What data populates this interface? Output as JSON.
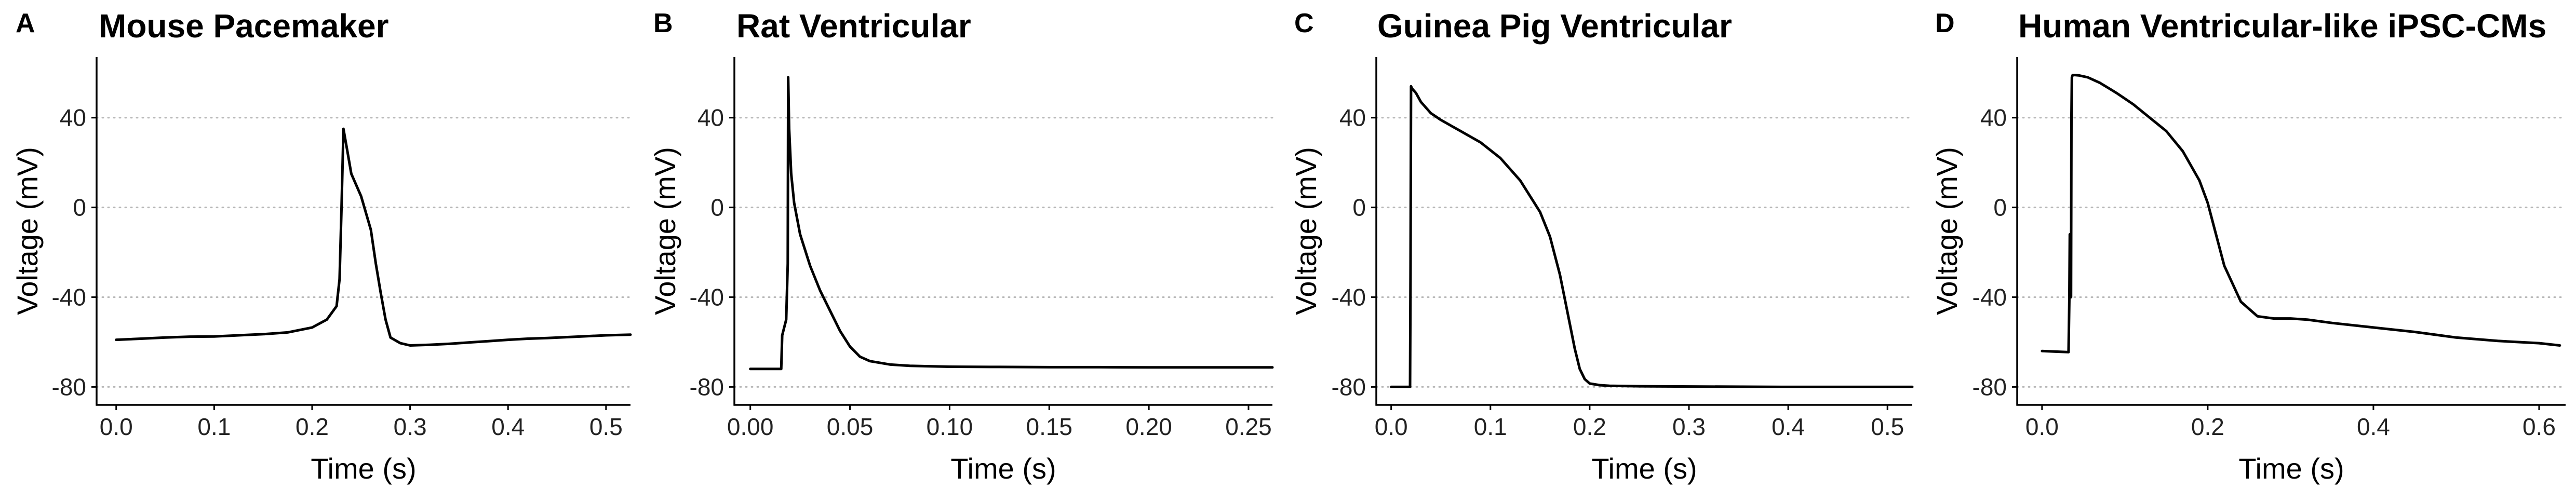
{
  "chart_data": [
    {
      "type": "line",
      "panel": "A",
      "title": "Mouse Pacemaker",
      "xlabel": "Time (s)",
      "ylabel": "Voltage (mV)",
      "xlim": [
        -0.02,
        0.525
      ],
      "ylim": [
        -88,
        67
      ],
      "xticks": [
        "0.0",
        "0.1",
        "0.2",
        "0.3",
        "0.4",
        "0.5"
      ],
      "yticks": [
        "-80",
        "-40",
        "0",
        "40"
      ],
      "grid": "horizontal dotted",
      "series": [
        {
          "x": [
            0.0,
            0.025,
            0.05,
            0.075,
            0.1,
            0.125,
            0.15,
            0.175,
            0.2,
            0.215,
            0.225,
            0.228,
            0.23,
            0.232,
            0.236,
            0.24,
            0.25,
            0.26,
            0.265,
            0.27,
            0.275,
            0.28,
            0.29,
            0.3,
            0.32,
            0.34,
            0.36,
            0.38,
            0.4,
            0.42,
            0.44,
            0.46,
            0.48,
            0.5,
            0.525
          ],
          "y": [
            -59,
            -58.5,
            -58,
            -57.6,
            -57.5,
            -57,
            -56.5,
            -55.7,
            -53.5,
            -50,
            -44,
            -32,
            0,
            35,
            25,
            15,
            5,
            -10,
            -25,
            -38,
            -50,
            -58,
            -60.5,
            -61.5,
            -61.2,
            -60.8,
            -60.2,
            -59.6,
            -59,
            -58.5,
            -58.2,
            -57.8,
            -57.4,
            -57,
            -56.7
          ]
        }
      ]
    },
    {
      "type": "line",
      "panel": "B",
      "title": "Rat Ventricular",
      "xlabel": "Time (s)",
      "ylabel": "Voltage (mV)",
      "xlim": [
        -0.008,
        0.262
      ],
      "ylim": [
        -88,
        67
      ],
      "xticks": [
        "0.00",
        "0.05",
        "0.10",
        "0.15",
        "0.20",
        "0.25"
      ],
      "yticks": [
        "-80",
        "-40",
        "0",
        "40"
      ],
      "grid": "horizontal dotted",
      "series": [
        {
          "x": [
            0.0,
            0.0155,
            0.016,
            0.018,
            0.0188,
            0.019,
            0.0195,
            0.0205,
            0.022,
            0.025,
            0.03,
            0.035,
            0.04,
            0.045,
            0.05,
            0.055,
            0.06,
            0.07,
            0.08,
            0.1,
            0.125,
            0.15,
            0.175,
            0.2,
            0.225,
            0.25,
            0.262
          ],
          "y": [
            -72,
            -72,
            -57,
            -50,
            -25,
            58,
            35,
            15,
            2,
            -12,
            -26,
            -37,
            -46,
            -55,
            -62,
            -66.5,
            -68.5,
            -70,
            -70.6,
            -71,
            -71.1,
            -71.2,
            -71.2,
            -71.3,
            -71.3,
            -71.3,
            -71.3
          ]
        }
      ]
    },
    {
      "type": "line",
      "panel": "C",
      "title": "Guinea Pig Ventricular",
      "xlabel": "Time (s)",
      "ylabel": "Voltage (mV)",
      "xlim": [
        -0.015,
        0.525
      ],
      "ylim": [
        -88,
        67
      ],
      "xticks": [
        "0.0",
        "0.1",
        "0.2",
        "0.3",
        "0.4",
        "0.5"
      ],
      "yticks": [
        "-80",
        "-40",
        "0",
        "40"
      ],
      "grid": "horizontal dotted",
      "series": [
        {
          "x": [
            0.0,
            0.019,
            0.0195,
            0.02,
            0.021,
            0.025,
            0.03,
            0.04,
            0.05,
            0.07,
            0.09,
            0.11,
            0.13,
            0.15,
            0.16,
            0.17,
            0.18,
            0.185,
            0.19,
            0.195,
            0.2,
            0.21,
            0.22,
            0.25,
            0.3,
            0.4,
            0.5,
            0.525
          ],
          "y": [
            -80,
            -80,
            -30,
            54,
            53,
            51,
            47,
            42,
            39,
            34,
            29,
            22,
            12,
            -2,
            -13,
            -30,
            -52,
            -63,
            -72,
            -76.5,
            -78.5,
            -79.2,
            -79.5,
            -79.7,
            -79.8,
            -80,
            -80,
            -80
          ]
        }
      ]
    },
    {
      "type": "line",
      "panel": "D",
      "title": "Human Ventricular-like iPSC-CMs",
      "xlabel": "Time (s)",
      "ylabel": "Voltage (mV)",
      "xlim": [
        -0.03,
        0.632
      ],
      "ylim": [
        -88,
        67
      ],
      "xticks": [
        "0.0",
        "0.2",
        "0.4",
        "0.6"
      ],
      "yticks": [
        "-80",
        "-40",
        "0",
        "40"
      ],
      "grid": "horizontal dotted",
      "series": [
        {
          "x": [
            0.0,
            0.032,
            0.033,
            0.0335,
            0.035,
            0.0355,
            0.036,
            0.037,
            0.04,
            0.045,
            0.055,
            0.07,
            0.09,
            0.11,
            0.13,
            0.15,
            0.17,
            0.19,
            0.2,
            0.21,
            0.22,
            0.24,
            0.26,
            0.28,
            0.3,
            0.32,
            0.35,
            0.4,
            0.45,
            0.5,
            0.55,
            0.6,
            0.625
          ],
          "y": [
            -64,
            -64.5,
            -40,
            -12,
            -40,
            40,
            58,
            59,
            59,
            58.8,
            58,
            55.5,
            51,
            46,
            40,
            34,
            25,
            12,
            2,
            -12,
            -26,
            -42,
            -48.5,
            -49.5,
            -49.5,
            -50,
            -51.5,
            -53.5,
            -55.5,
            -58,
            -59.5,
            -60.5,
            -61.5
          ]
        }
      ]
    }
  ]
}
